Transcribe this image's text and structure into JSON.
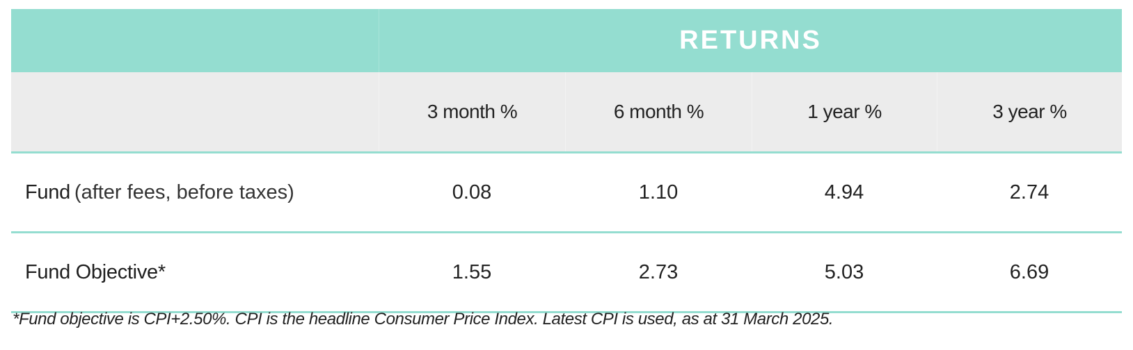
{
  "table": {
    "group_header": "RETURNS",
    "columns": [
      "3 month %",
      "6 month %",
      "1 year %",
      "3 year %"
    ],
    "rows": [
      {
        "label": "Fund",
        "label_note": "(after fees, before taxes)",
        "values": [
          "0.08",
          "1.10",
          "4.94",
          "2.74"
        ]
      },
      {
        "label": "Fund Objective*",
        "label_note": "",
        "values": [
          "1.55",
          "2.73",
          "5.03",
          "6.69"
        ]
      }
    ]
  },
  "footnote": "*Fund objective is CPI+2.50%. CPI is the headline Consumer Price Index. Latest CPI is used, as at 31 March 2025.",
  "colors": {
    "accent": "#94ddd0",
    "header_band": "#ececec",
    "header_text": "#ffffff"
  }
}
